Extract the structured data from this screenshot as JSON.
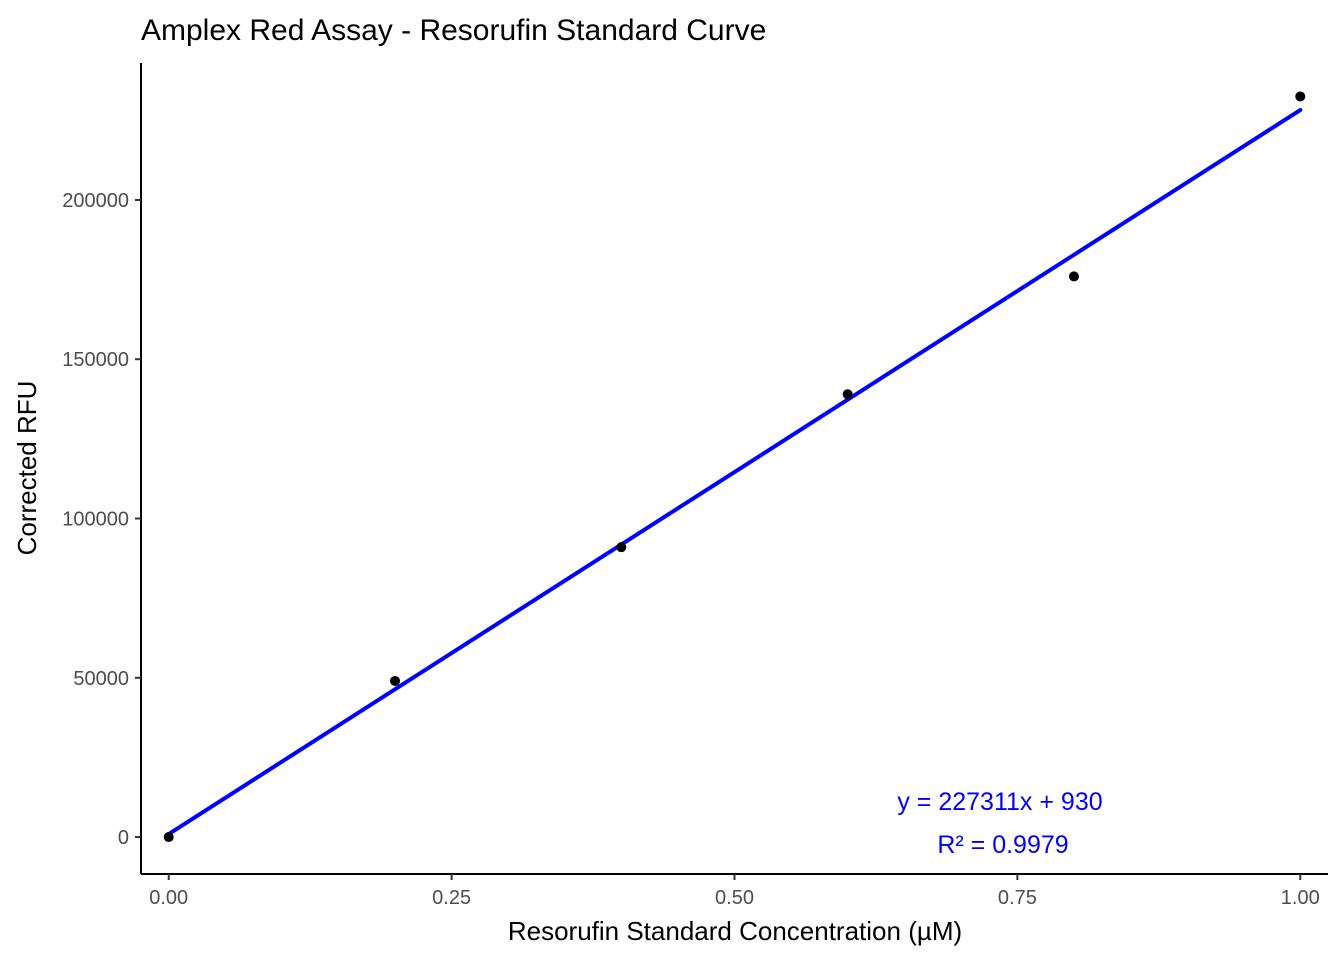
{
  "chart_data": {
    "type": "scatter",
    "title": "Amplex Red Assay - Resorufin Standard Curve",
    "xlabel": "Resorufin Standard Concentration (µM)",
    "ylabel": "Corrected RFU",
    "xlim": [
      -0.0245,
      1.0245
    ],
    "ylim": [
      -11600,
      243000
    ],
    "x_ticks": [
      0,
      0.25,
      0.5,
      0.75,
      1.0
    ],
    "x_tick_labels": [
      "0.00",
      "0.25",
      "0.50",
      "0.75",
      "1.00"
    ],
    "y_ticks": [
      0,
      50000,
      100000,
      150000,
      200000
    ],
    "y_tick_labels": [
      "0",
      "50000",
      "100000",
      "150000",
      "200000"
    ],
    "grid": false,
    "series": [
      {
        "type": "scatter",
        "color": "#000000",
        "x": [
          0,
          0.2,
          0.4,
          0.6,
          0.8,
          1.0
        ],
        "y": [
          0,
          49000,
          91000,
          139000,
          176000,
          232500
        ]
      },
      {
        "type": "line",
        "color": "#0000ff",
        "x": [
          0,
          1.0
        ],
        "y": [
          930,
          228241
        ]
      }
    ],
    "annotations": [
      {
        "text": "y = 227311x + 930",
        "color": "#0000ff"
      },
      {
        "text": "R² =  0.9979",
        "color": "#0000ff"
      }
    ]
  }
}
